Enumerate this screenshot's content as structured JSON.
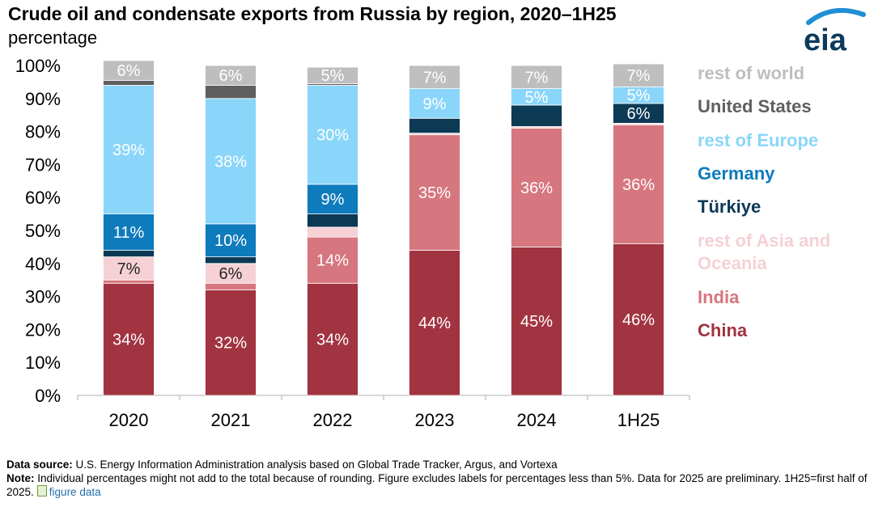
{
  "title": "Crude oil and condensate exports from Russia by region, 2020–1H25",
  "subtitle": "percentage",
  "logo_text": "eia",
  "chart_data": {
    "type": "bar",
    "stacked": true,
    "categories": [
      "2020",
      "2021",
      "2022",
      "2023",
      "2024",
      "1H25"
    ],
    "y_ticks": [
      "0%",
      "10%",
      "20%",
      "30%",
      "40%",
      "50%",
      "60%",
      "70%",
      "80%",
      "90%",
      "100%"
    ],
    "ylim": [
      0,
      100
    ],
    "grid": false,
    "legend_position": "right",
    "series": [
      {
        "name": "China",
        "color": "#a23340",
        "values": [
          34,
          32,
          34,
          44,
          45,
          46
        ],
        "labels": [
          "34%",
          "32%",
          "34%",
          "44%",
          "45%",
          "46%"
        ]
      },
      {
        "name": "India",
        "color": "#d6767e",
        "values": [
          1,
          2,
          14,
          35,
          36,
          36
        ],
        "labels": [
          "",
          "",
          "14%",
          "35%",
          "36%",
          "36%"
        ]
      },
      {
        "name": "rest of Asia and Oceania",
        "color": "#f5d1d6",
        "values": [
          7,
          6,
          3,
          0.5,
          0.5,
          0.5
        ],
        "labels": [
          "7%",
          "6%",
          "",
          "",
          "",
          ""
        ]
      },
      {
        "name": "Türkiye",
        "color": "#0c3954",
        "values": [
          2,
          2,
          4,
          4.5,
          6.5,
          6
        ],
        "labels": [
          "",
          "",
          "",
          "",
          "",
          "6%"
        ]
      },
      {
        "name": "Germany",
        "color": "#0e7bbd",
        "values": [
          11,
          10,
          9,
          0,
          0,
          0
        ],
        "labels": [
          "11%",
          "10%",
          "9%",
          "",
          "",
          ""
        ]
      },
      {
        "name": "rest of Europe",
        "color": "#8ad6fa",
        "values": [
          39,
          38,
          30,
          9,
          5,
          5
        ],
        "labels": [
          "39%",
          "38%",
          "30%",
          "9%",
          "5%",
          "5%"
        ]
      },
      {
        "name": "United States",
        "color": "#5f5f5f",
        "values": [
          1.5,
          4,
          0.5,
          0,
          0,
          0
        ],
        "labels": [
          "",
          "",
          "",
          "",
          "",
          ""
        ]
      },
      {
        "name": "rest of world",
        "color": "#bebebe",
        "values": [
          6,
          6,
          5,
          7,
          7,
          7
        ],
        "labels": [
          "6%",
          "6%",
          "5%",
          "7%",
          "7%",
          "7%"
        ]
      }
    ],
    "legend_order": [
      "rest of world",
      "United States",
      "rest of Europe",
      "Germany",
      "Türkiye",
      "rest of Asia and Oceania",
      "India",
      "China"
    ]
  },
  "footer": {
    "source_label": "Data source:",
    "source_text": " U.S. Energy Information Administration analysis based on Global Trade Tracker, Argus, and Vortexa",
    "note_label": "Note:",
    "note_text": " Individual percentages might not add to the total because of rounding. Figure excludes labels for percentages less than 5%. Data for 2025 are preliminary. 1H25=first half of 2025.",
    "link_text": "figure data"
  }
}
